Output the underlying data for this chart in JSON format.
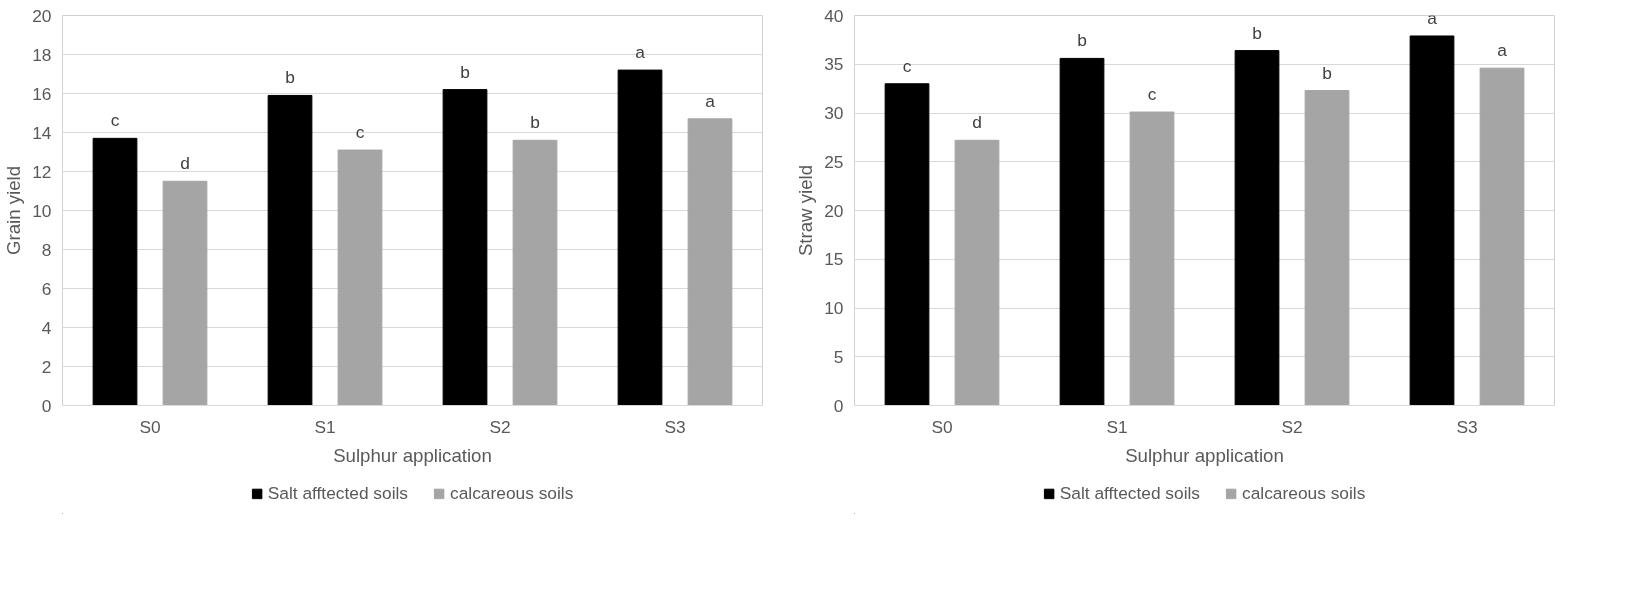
{
  "chart_data": [
    {
      "type": "bar",
      "xlabel": "Sulphur application",
      "ylabel": "Grain yield",
      "categories": [
        "S0",
        "S1",
        "S2",
        "S3"
      ],
      "series": [
        {
          "name": "Salt afftected soils",
          "color": "#000000",
          "values": [
            13.7,
            15.9,
            16.2,
            17.2
          ]
        },
        {
          "name": "calcareous soils",
          "color": "#a5a5a5",
          "values": [
            11.5,
            13.1,
            13.6,
            14.7
          ]
        }
      ],
      "ylim": [
        0,
        20
      ],
      "yticks": [
        0,
        2,
        4,
        6,
        8,
        10,
        12,
        14,
        16,
        18,
        20
      ],
      "grid": "y",
      "legend": "bottom",
      "annotations": [
        "c",
        "d",
        "b",
        "c",
        "b",
        "b",
        "a",
        "a"
      ]
    },
    {
      "type": "bar",
      "xlabel": "Sulphur application",
      "ylabel": "Straw yield",
      "categories": [
        "S0",
        "S1",
        "S2",
        "S3"
      ],
      "series": [
        {
          "name": "Salt afftected soils",
          "color": "#000000",
          "values": [
            33.0,
            35.6,
            36.4,
            37.9
          ]
        },
        {
          "name": "calcareous soils",
          "color": "#a5a5a5",
          "values": [
            27.2,
            30.1,
            32.3,
            34.6
          ]
        }
      ],
      "ylim": [
        0,
        40
      ],
      "yticks": [
        0,
        5,
        10,
        15,
        20,
        25,
        30,
        35,
        40
      ],
      "grid": "y",
      "legend": "bottom",
      "annotations": [
        "c",
        "d",
        "b",
        "c",
        "b",
        "b",
        "a",
        "a"
      ]
    }
  ]
}
